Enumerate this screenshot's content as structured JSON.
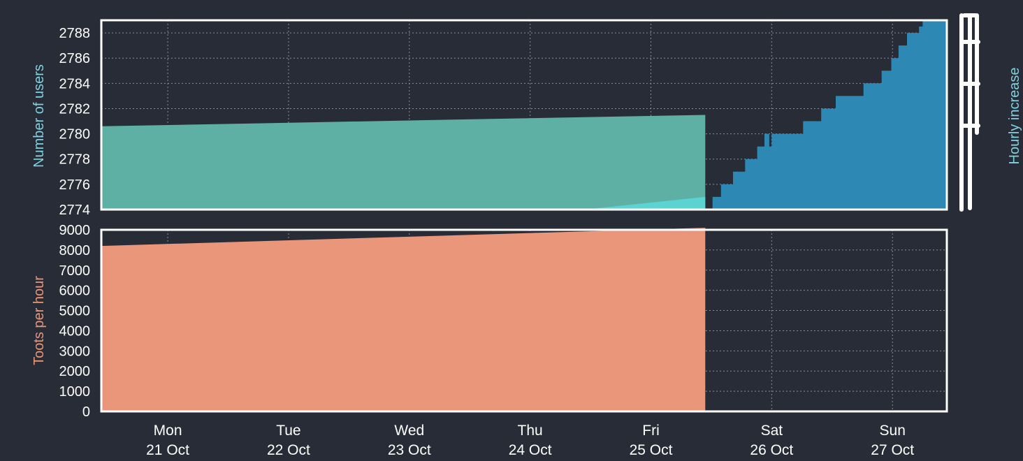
{
  "colors": {
    "background": "#282c37",
    "frame": "#ffffff",
    "grid": "#8a8f9c",
    "tick_text": "#ffffff",
    "users_fill": "#5fb0a4",
    "users_flat_fill": "#5ad3d1",
    "users_steps_fill": "#2d88b3",
    "users_label": "#7fd3e0",
    "hourly_label": "#7fd3e0",
    "toots_fill": "#ea967b",
    "toots_label": "#ea967b"
  },
  "chart_data": [
    {
      "type": "area",
      "ylabel": "Number of users",
      "y2label": "Hourly increase",
      "ylim": [
        2774,
        2789
      ],
      "yticks": [
        2774,
        2776,
        2778,
        2780,
        2782,
        2784,
        2786,
        2788
      ],
      "xlim": [
        0,
        7
      ],
      "grid": true,
      "series": [
        {
          "role": "users_ramp",
          "x": [
            0,
            5.0
          ],
          "y": [
            2780.6,
            2781.5
          ]
        },
        {
          "role": "users_flat",
          "x": [
            4.0,
            5.0
          ],
          "y": [
            2774.0,
            2775.0
          ]
        },
        {
          "role": "users_steps",
          "x": [
            5.0,
            5.06,
            5.13,
            5.23,
            5.33,
            5.43,
            5.49,
            5.53,
            5.55,
            5.81,
            5.96,
            6.08,
            6.31,
            6.46,
            6.54,
            6.6,
            6.67,
            6.77,
            6.8,
            6.85,
            6.92,
            7.0
          ],
          "y": [
            2774.0,
            2775.0,
            2776.0,
            2777.0,
            2778.0,
            2779.0,
            2780.0,
            2779.0,
            2780.0,
            2781.0,
            2782.0,
            2783.0,
            2784.0,
            2785.0,
            2786.0,
            2787.0,
            2788.0,
            2788.5,
            2789.0,
            2789.0,
            2789.0,
            2789.0
          ]
        }
      ]
    },
    {
      "type": "area",
      "ylabel": "Toots per hour",
      "ylim": [
        0,
        9000
      ],
      "yticks": [
        0,
        1000,
        2000,
        3000,
        4000,
        5000,
        6000,
        7000,
        8000,
        9000
      ],
      "xlim": [
        0,
        7
      ],
      "grid": true,
      "series": [
        {
          "role": "toots",
          "x": [
            0,
            5.0
          ],
          "y": [
            8200,
            9100
          ]
        }
      ]
    }
  ],
  "x_ticks": [
    {
      "day": "Mon",
      "date": "21 Oct",
      "x": 0.55
    },
    {
      "day": "Tue",
      "date": "22 Oct",
      "x": 1.55
    },
    {
      "day": "Wed",
      "date": "23 Oct",
      "x": 2.55
    },
    {
      "day": "Thu",
      "date": "24 Oct",
      "x": 3.55
    },
    {
      "day": "Fri",
      "date": "25 Oct",
      "x": 4.55
    },
    {
      "day": "Sat",
      "date": "26 Oct",
      "x": 5.55
    },
    {
      "day": "Sun",
      "date": "27 Oct",
      "x": 6.55
    }
  ]
}
